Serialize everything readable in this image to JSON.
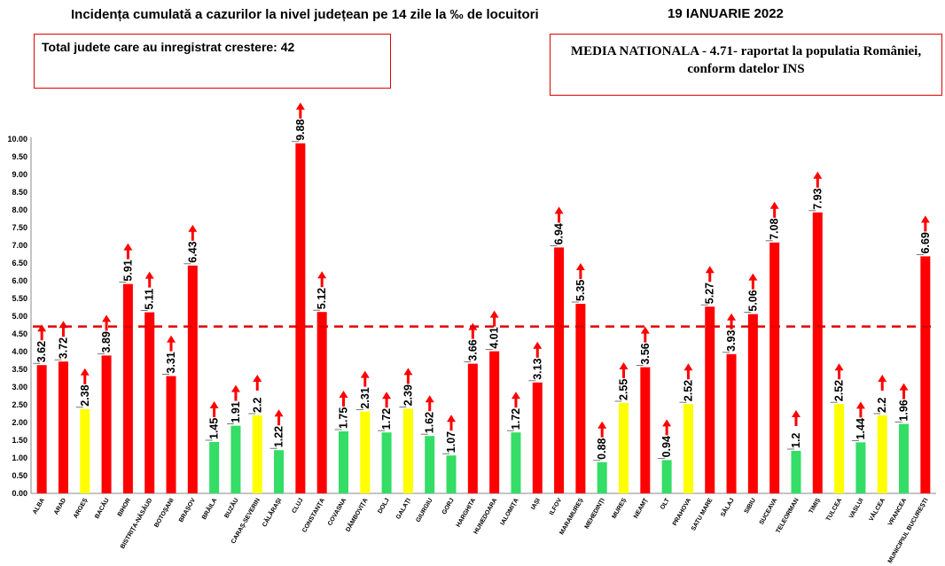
{
  "header": {
    "title": "Incidența cumulată a cazurilor la nivel județean pe 14 zile la ‰ de locuitori",
    "date": "19 IANUARIE 2022"
  },
  "info_box": {
    "text": "Total judete care au inregistrat crestere: 42"
  },
  "national_box": {
    "line1": "MEDIA NATIONALA - 4.71-  raportat la populatia României,",
    "line2": "conform datelor INS"
  },
  "colors": {
    "red": "#ff0000",
    "yellow": "#ffff00",
    "green": "#33dd66",
    "reference": "#e00000"
  },
  "chart_data": {
    "type": "bar",
    "title": "Incidența cumulată a cazurilor la nivel județean pe 14 zile la ‰ de locuitori",
    "ylim": [
      0,
      10
    ],
    "yticks": [
      "0.00",
      "0.50",
      "1.00",
      "1.50",
      "2.00",
      "2.50",
      "3.00",
      "3.50",
      "4.00",
      "4.50",
      "5.00",
      "5.50",
      "6.00",
      "6.50",
      "7.00",
      "7.50",
      "8.00",
      "8.50",
      "9.00",
      "9.50",
      "10.00"
    ],
    "reference_line": {
      "label": "MEDIA NATIONALA",
      "value": 4.71
    },
    "categories": [
      "ALBA",
      "ARAD",
      "ARGEȘ",
      "BACĂU",
      "BIHOR",
      "BISTRIȚA-NĂSĂUD",
      "BOTOȘANI",
      "BRAȘOV",
      "BRĂILA",
      "BUZĂU",
      "CARAȘ-SEVERIN",
      "CĂLĂRAȘI",
      "CLUJ",
      "CONSTANȚA",
      "COVASNA",
      "DÂMBOVIȚA",
      "DOLJ",
      "GALAȚI",
      "GIURGIU",
      "GORJ",
      "HARGHITA",
      "HUNEDOARA",
      "IALOMIȚA",
      "IAȘI",
      "ILFOV",
      "MARAMUREȘ",
      "MEHEDINȚI",
      "MUREȘ",
      "NEAMȚ",
      "OLT",
      "PRAHOVA",
      "SATU MARE",
      "SĂLAJ",
      "SIBIU",
      "SUCEAVA",
      "TELEORMAN",
      "TIMIȘ",
      "TULCEA",
      "VASLUI",
      "VÂLCEA",
      "VRANCEA",
      "MUNICIPIUL BUCUREȘTI"
    ],
    "values": [
      3.62,
      3.72,
      2.38,
      3.89,
      5.91,
      5.11,
      3.31,
      6.43,
      1.45,
      1.91,
      2.2,
      1.22,
      9.88,
      5.12,
      1.75,
      2.31,
      1.72,
      2.39,
      1.62,
      1.07,
      3.66,
      4.01,
      1.72,
      3.13,
      6.94,
      5.35,
      0.88,
      2.55,
      3.56,
      0.94,
      2.52,
      5.27,
      3.93,
      5.06,
      7.08,
      1.2,
      7.93,
      2.52,
      1.44,
      2.2,
      1.96,
      6.69
    ],
    "labels": [
      "3.62",
      "3.72",
      "2.38",
      "3.89",
      "5.91",
      "5.11",
      "3.31",
      "6.43",
      "1.45",
      "1.91",
      "2.2",
      "1.22",
      "9.88",
      "5.12",
      "1.75",
      "2.31",
      "1.72",
      "2.39",
      "1.62",
      "1.07",
      "3.66",
      "4.01",
      "1.72",
      "3.13",
      "6.94",
      "5.35",
      "0.88",
      "2.55",
      "3.56",
      "0.94",
      "2.52",
      "5.27",
      "3.93",
      "5.06",
      "7.08",
      "1.2",
      "7.93",
      "2.52",
      "1.44",
      "2.2",
      "1.96",
      "6.69"
    ],
    "bar_colors": [
      "red",
      "red",
      "yellow",
      "red",
      "red",
      "red",
      "red",
      "red",
      "green",
      "green",
      "yellow",
      "green",
      "red",
      "red",
      "green",
      "yellow",
      "green",
      "yellow",
      "green",
      "green",
      "red",
      "red",
      "green",
      "red",
      "red",
      "red",
      "green",
      "yellow",
      "red",
      "green",
      "yellow",
      "red",
      "red",
      "red",
      "red",
      "green",
      "red",
      "yellow",
      "green",
      "yellow",
      "green",
      "red"
    ],
    "trend": "up"
  }
}
